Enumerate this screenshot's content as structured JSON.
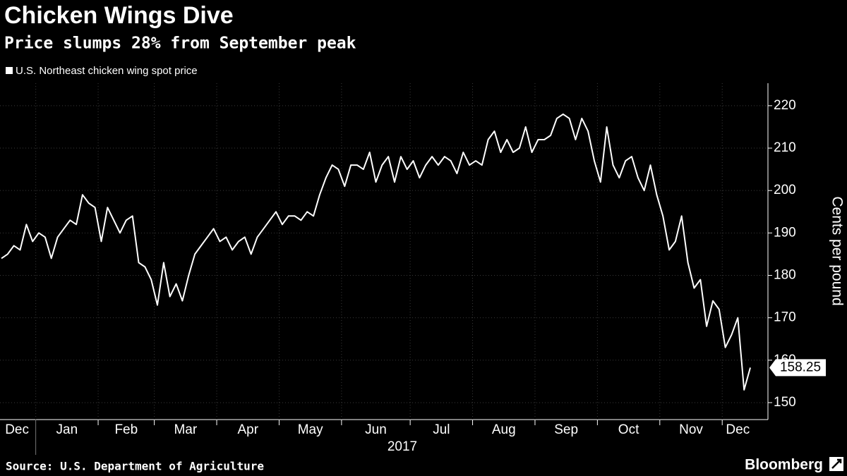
{
  "chart_data": {
    "type": "line",
    "title": "Chicken Wings Dive",
    "subtitle": "Price slumps 28% from September peak",
    "y_label": "Cents per pound",
    "year_label": "2017",
    "source": "Source: U.S. Department of Agriculture",
    "brand": "Bloomberg",
    "x": [
      "Dec",
      "Dec",
      "Dec",
      "Dec",
      "Dec",
      "Dec",
      "Jan",
      "Jan",
      "Jan",
      "Jan",
      "Jan",
      "Jan",
      "Jan",
      "Jan",
      "Jan",
      "Jan",
      "Feb",
      "Feb",
      "Feb",
      "Feb",
      "Feb",
      "Feb",
      "Feb",
      "Feb",
      "Feb",
      "Mar",
      "Mar",
      "Mar",
      "Mar",
      "Mar",
      "Mar",
      "Mar",
      "Mar",
      "Mar",
      "Mar",
      "Apr",
      "Apr",
      "Apr",
      "Apr",
      "Apr",
      "Apr",
      "Apr",
      "Apr",
      "Apr",
      "Apr",
      "May",
      "May",
      "May",
      "May",
      "May",
      "May",
      "May",
      "May",
      "May",
      "May",
      "Jun",
      "Jun",
      "Jun",
      "Jun",
      "Jun",
      "Jun",
      "Jun",
      "Jun",
      "Jun",
      "Jun",
      "Jun",
      "Jul",
      "Jul",
      "Jul",
      "Jul",
      "Jul",
      "Jul",
      "Jul",
      "Jul",
      "Jul",
      "Jul",
      "Aug",
      "Aug",
      "Aug",
      "Aug",
      "Aug",
      "Aug",
      "Aug",
      "Aug",
      "Aug",
      "Aug",
      "Sep",
      "Sep",
      "Sep",
      "Sep",
      "Sep",
      "Sep",
      "Sep",
      "Sep",
      "Sep",
      "Sep",
      "Oct",
      "Oct",
      "Oct",
      "Oct",
      "Oct",
      "Oct",
      "Oct",
      "Oct",
      "Oct",
      "Oct",
      "Nov",
      "Nov",
      "Nov",
      "Nov",
      "Nov",
      "Nov",
      "Nov",
      "Nov",
      "Nov",
      "Nov",
      "Dec",
      "Dec",
      "Dec",
      "Dec",
      "Dec"
    ],
    "series": [
      {
        "name": "U.S. Northeast chicken wing spot price",
        "color": "#ffffff",
        "values": [
          184,
          185,
          187,
          186,
          192,
          188,
          190,
          189,
          184,
          189,
          191,
          193,
          192,
          199,
          197,
          196,
          188,
          196,
          193,
          190,
          193,
          194,
          183,
          182,
          179,
          173,
          183,
          175,
          178,
          174,
          180,
          185,
          187,
          189,
          191,
          188,
          189,
          186,
          188,
          189,
          185,
          189,
          191,
          193,
          195,
          192,
          194,
          194,
          193,
          195,
          194,
          199,
          203,
          206,
          205,
          201,
          206,
          206,
          205,
          209,
          202,
          206,
          208,
          202,
          208,
          205,
          207,
          203,
          206,
          208,
          206,
          208,
          207,
          204,
          209,
          206,
          207,
          206,
          212,
          214,
          209,
          212,
          209,
          210,
          215,
          209,
          212,
          212,
          213,
          217,
          218,
          217,
          212,
          217,
          214,
          207,
          202,
          215,
          206,
          203,
          207,
          208,
          203,
          200,
          206,
          199,
          194,
          186,
          188,
          194,
          183,
          177,
          179,
          168,
          174,
          172,
          163,
          166,
          170,
          153,
          158.25
        ]
      }
    ],
    "ylim": [
      146,
      225.3
    ],
    "yticks": [
      150,
      160,
      170,
      180,
      190,
      200,
      210,
      220
    ],
    "grid": true
  }
}
